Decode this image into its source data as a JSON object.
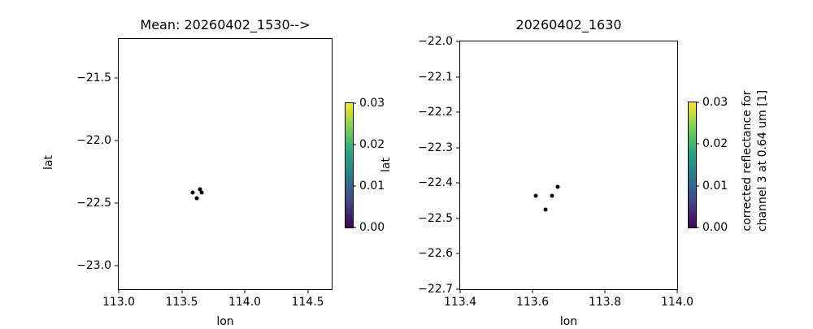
{
  "figure": {
    "background": "#ffffff",
    "marker_color": "#000000",
    "text_color": "#000000",
    "colormap_name": "viridis",
    "colormap": [
      "#440154",
      "#414487",
      "#2a788e",
      "#22a884",
      "#7ad151",
      "#fde725"
    ]
  },
  "chart_data": [
    {
      "type": "scatter",
      "title": "Mean: 20260402_1530-->",
      "xlabel": "lon",
      "ylabel": "lat",
      "grid": false,
      "legend": null,
      "xlim": [
        113.0,
        114.69
      ],
      "ylim": [
        -23.19,
        -21.19
      ],
      "xticks": {
        "values": [
          113.0,
          113.5,
          114.0,
          114.5
        ],
        "labels": [
          "113.0",
          "113.5",
          "114.0",
          "114.5"
        ]
      },
      "yticks": {
        "values": [
          -21.5,
          -22.0,
          -22.5,
          -23.0
        ],
        "labels": [
          "−21.5",
          "−22.0",
          "−22.5",
          "−23.0"
        ]
      },
      "points": [
        {
          "lon": 113.59,
          "lat": -22.42
        },
        {
          "lon": 113.645,
          "lat": -22.39
        },
        {
          "lon": 113.66,
          "lat": -22.42
        },
        {
          "lon": 113.62,
          "lat": -22.46
        }
      ],
      "colorbar": {
        "vmin": 0.0,
        "vmax": 0.03,
        "ticks": {
          "values": [
            0.0,
            0.01,
            0.02,
            0.03
          ],
          "labels": [
            "0.00",
            "0.01",
            "0.02",
            "0.03"
          ]
        },
        "label": ""
      }
    },
    {
      "type": "scatter",
      "title": "20260402_1630",
      "xlabel": "lon",
      "ylabel": "lat",
      "grid": false,
      "legend": null,
      "xlim": [
        113.4,
        114.0
      ],
      "ylim": [
        -22.7,
        -22.0
      ],
      "xticks": {
        "values": [
          113.4,
          113.6,
          113.8,
          114.0
        ],
        "labels": [
          "113.4",
          "113.6",
          "113.8",
          "114.0"
        ]
      },
      "yticks": {
        "values": [
          -22.0,
          -22.1,
          -22.2,
          -22.3,
          -22.4,
          -22.5,
          -22.6,
          -22.7
        ],
        "labels": [
          "−22.0",
          "−22.1",
          "−22.2",
          "−22.3",
          "−22.4",
          "−22.5",
          "−22.6",
          "−22.7"
        ]
      },
      "points": [
        {
          "lon": 113.67,
          "lat": -22.41
        },
        {
          "lon": 113.61,
          "lat": -22.435
        },
        {
          "lon": 113.655,
          "lat": -22.435
        },
        {
          "lon": 113.635,
          "lat": -22.475
        }
      ],
      "colorbar": {
        "vmin": 0.0,
        "vmax": 0.03,
        "ticks": {
          "values": [
            0.0,
            0.01,
            0.02,
            0.03
          ],
          "labels": [
            "0.00",
            "0.01",
            "0.02",
            "0.03"
          ]
        },
        "label": "corrected reflectance for\nchannel 3 at 0.64 um [1]"
      }
    }
  ]
}
